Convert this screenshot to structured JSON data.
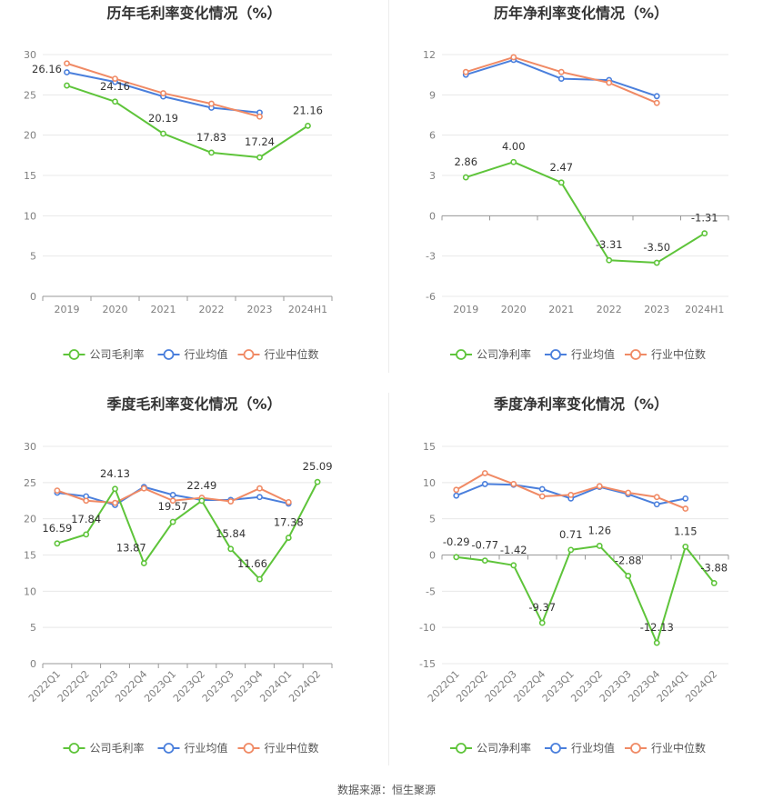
{
  "colors": {
    "company": "#5ec43a",
    "industry_avg": "#4a7fdc",
    "industry_median": "#f08a65",
    "grid": "#e8e8e8",
    "axis": "#999999"
  },
  "chart_data": [
    {
      "type": "line",
      "title": "历年毛利率变化情况（%）",
      "categories": [
        "2019",
        "2020",
        "2021",
        "2022",
        "2023",
        "2024H1"
      ],
      "ylim": [
        0,
        30
      ],
      "yticks": [
        0,
        5,
        10,
        15,
        20,
        25,
        30
      ],
      "series": [
        {
          "name": "公司毛利率",
          "values": [
            26.16,
            24.16,
            20.19,
            17.83,
            17.24,
            21.16
          ],
          "labels": [
            "26.16",
            "24.16",
            "20.19",
            "17.83",
            "17.24",
            "21.16"
          ]
        },
        {
          "name": "行业均值",
          "values": [
            27.8,
            26.6,
            24.8,
            23.4,
            22.8,
            null
          ]
        },
        {
          "name": "行业中位数",
          "values": [
            28.9,
            27.0,
            25.2,
            23.9,
            22.3,
            null
          ]
        }
      ]
    },
    {
      "type": "line",
      "title": "历年净利率变化情况（%）",
      "categories": [
        "2019",
        "2020",
        "2021",
        "2022",
        "2023",
        "2024H1"
      ],
      "ylim": [
        -6,
        12
      ],
      "yticks": [
        -6,
        -3,
        0,
        3,
        6,
        9,
        12
      ],
      "series": [
        {
          "name": "公司净利率",
          "values": [
            2.86,
            4.0,
            2.47,
            -3.31,
            -3.5,
            -1.31
          ],
          "labels": [
            "2.86",
            "4.00",
            "2.47",
            "-3.31",
            "-3.50",
            "-1.31"
          ]
        },
        {
          "name": "行业均值",
          "values": [
            10.5,
            11.6,
            10.2,
            10.1,
            8.9,
            null
          ]
        },
        {
          "name": "行业中位数",
          "values": [
            10.7,
            11.8,
            10.7,
            9.9,
            8.4,
            null
          ]
        }
      ]
    },
    {
      "type": "line",
      "title": "季度毛利率变化情况（%）",
      "categories": [
        "2022Q1",
        "2022Q2",
        "2022Q3",
        "2022Q4",
        "2023Q1",
        "2023Q2",
        "2023Q3",
        "2023Q4",
        "2024Q1",
        "2024Q2"
      ],
      "ylim": [
        0,
        30
      ],
      "yticks": [
        0,
        5,
        10,
        15,
        20,
        25,
        30
      ],
      "series": [
        {
          "name": "公司毛利率",
          "values": [
            16.59,
            17.84,
            24.13,
            13.87,
            19.57,
            22.49,
            15.84,
            11.66,
            17.38,
            25.09
          ],
          "labels": [
            "16.59",
            "17.84",
            "24.13",
            "13.87",
            "19.57",
            "22.49",
            "15.84",
            "11.66",
            "17.38",
            "25.09"
          ]
        },
        {
          "name": "行业均值",
          "values": [
            23.6,
            23.1,
            21.9,
            24.4,
            23.3,
            22.6,
            22.6,
            23.0,
            22.1,
            null
          ]
        },
        {
          "name": "行业中位数",
          "values": [
            23.9,
            22.5,
            22.2,
            24.2,
            22.5,
            22.9,
            22.4,
            24.2,
            22.3,
            null
          ]
        }
      ]
    },
    {
      "type": "line",
      "title": "季度净利率变化情况（%）",
      "categories": [
        "2022Q1",
        "2022Q2",
        "2022Q3",
        "2022Q4",
        "2023Q1",
        "2023Q2",
        "2023Q3",
        "2023Q4",
        "2024Q1",
        "2024Q2"
      ],
      "ylim": [
        -15,
        15
      ],
      "yticks": [
        -15,
        -10,
        -5,
        0,
        5,
        10,
        15
      ],
      "series": [
        {
          "name": "公司净利率",
          "values": [
            -0.29,
            -0.77,
            -1.42,
            -9.37,
            0.71,
            1.26,
            -2.88,
            -12.13,
            1.15,
            -3.88
          ],
          "labels": [
            "-0.29",
            "-0.77",
            "-1.42",
            "-9.37",
            "0.71",
            "1.26",
            "-2.88",
            "-12.13",
            "1.15",
            "-3.88"
          ]
        },
        {
          "name": "行业均值",
          "values": [
            8.2,
            9.8,
            9.7,
            9.1,
            7.8,
            9.4,
            8.4,
            7.0,
            7.8,
            null
          ]
        },
        {
          "name": "行业中位数",
          "values": [
            9.0,
            11.3,
            9.8,
            8.1,
            8.3,
            9.5,
            8.6,
            8.0,
            6.4,
            null
          ]
        }
      ]
    }
  ],
  "footer": {
    "source": "数据来源：恒生聚源"
  }
}
